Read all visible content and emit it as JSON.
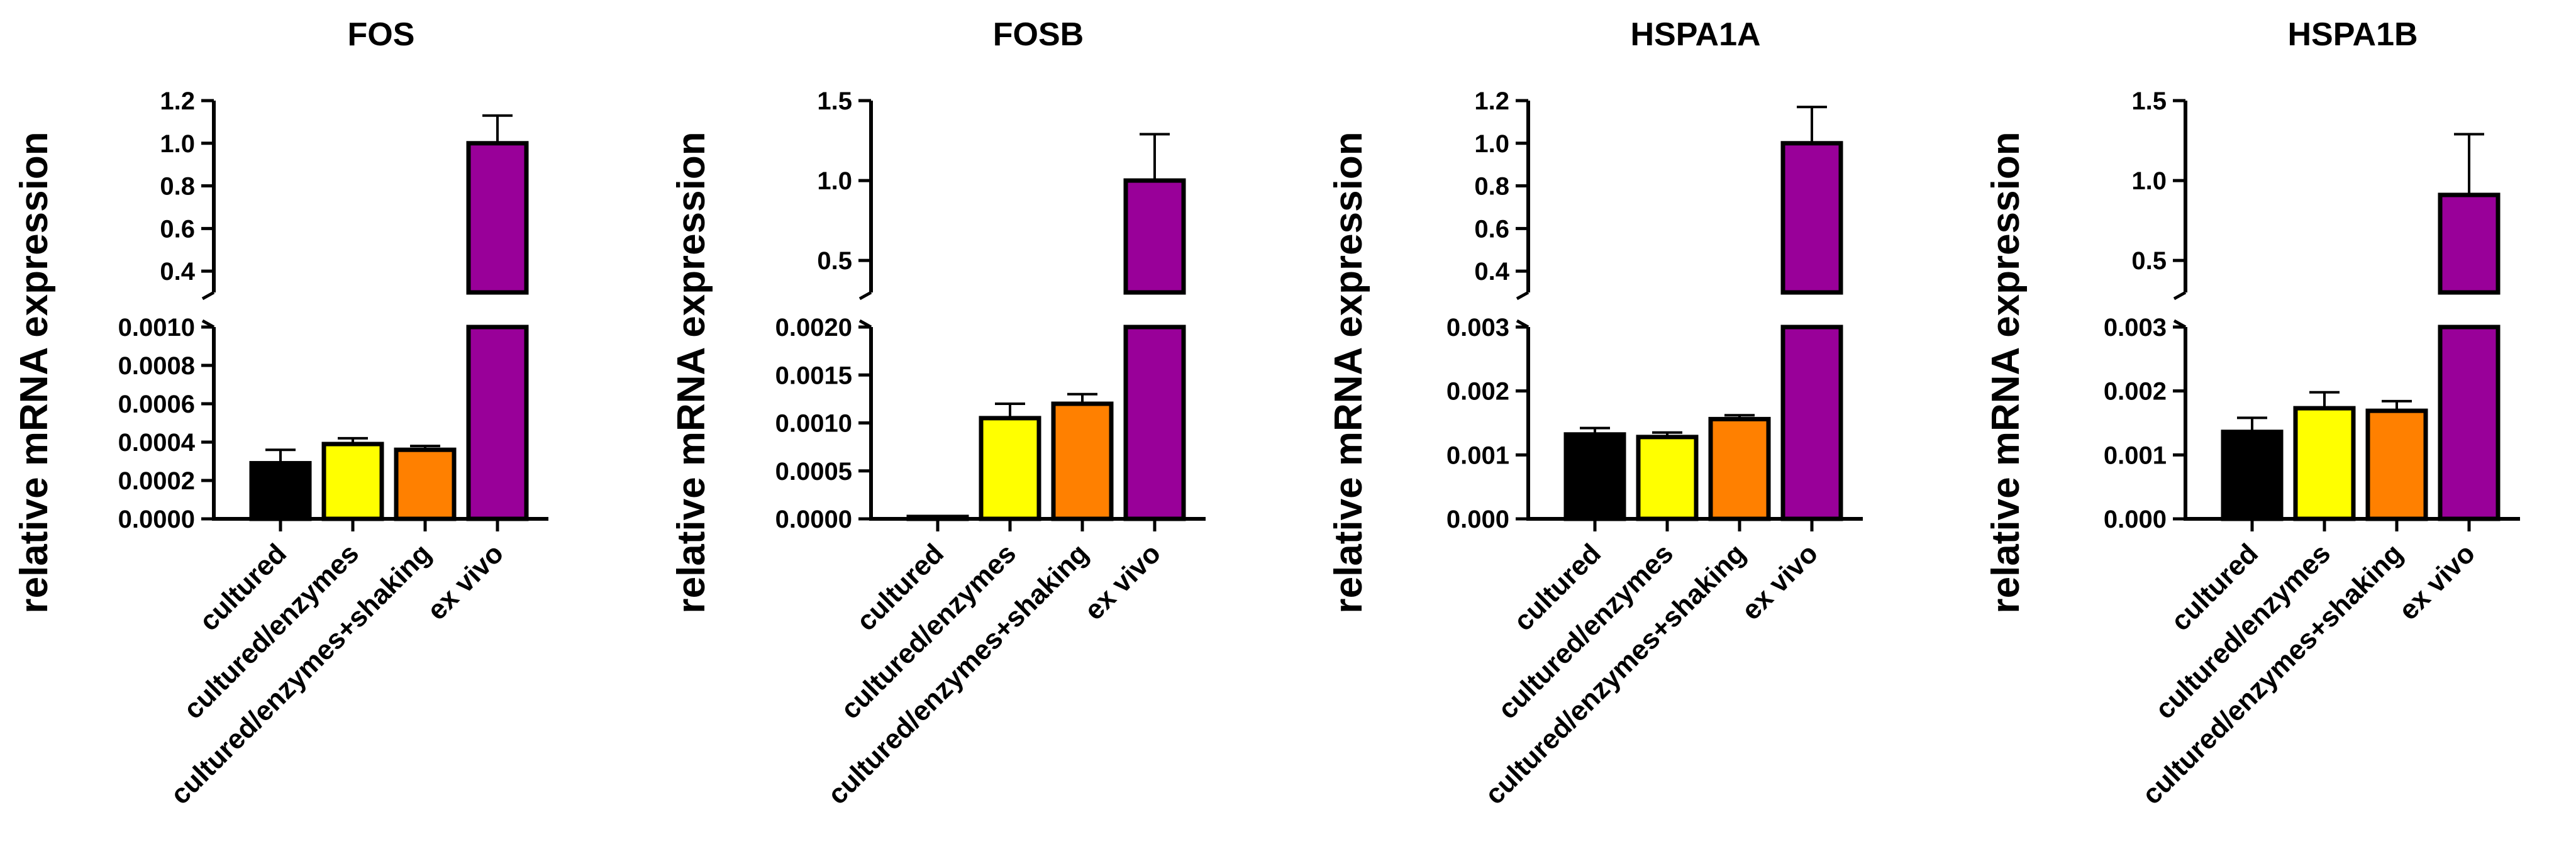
{
  "chart_data": [
    {
      "type": "bar",
      "title": "FOS",
      "ylabel": "relative mRNA expression",
      "categories": [
        "cultured",
        "cultured/enzymes",
        "cultured/enzymes+shaking",
        "ex vivo"
      ],
      "values": [
        0.00029,
        0.00039,
        0.00036,
        1.0
      ],
      "errors": [
        7e-05,
        3e-05,
        2e-05,
        0.13
      ],
      "colors": [
        "#000000",
        "#ffff00",
        "#ff8000",
        "#990099"
      ],
      "broken_axis": true,
      "lower": {
        "ylim": [
          0,
          0.001
        ],
        "ticks": [
          "0.0000",
          "0.0002",
          "0.0004",
          "0.0006",
          "0.0008",
          "0.0010"
        ]
      },
      "upper": {
        "ylim": [
          0.3,
          1.2
        ],
        "ticks": [
          "0.4",
          "0.6",
          "0.8",
          "1.0",
          "1.2"
        ]
      }
    },
    {
      "type": "bar",
      "title": "FOSB",
      "ylabel": "relative mRNA expression",
      "categories": [
        "cultured",
        "cultured/enzymes",
        "cultured/enzymes+shaking",
        "ex vivo"
      ],
      "values": [
        2e-05,
        0.00105,
        0.0012,
        1.0
      ],
      "errors": [
        0.0,
        0.00015,
        0.0001,
        0.29
      ],
      "colors": [
        "#000000",
        "#ffff00",
        "#ff8000",
        "#990099"
      ],
      "broken_axis": true,
      "lower": {
        "ylim": [
          0,
          0.002
        ],
        "ticks": [
          "0.0000",
          "0.0005",
          "0.0010",
          "0.0015",
          "0.0020"
        ]
      },
      "upper": {
        "ylim": [
          0.3,
          1.5
        ],
        "ticks": [
          "0.5",
          "1.0",
          "1.5"
        ]
      }
    },
    {
      "type": "bar",
      "title": "HSPA1A",
      "ylabel": "relative mRNA expression",
      "categories": [
        "cultured",
        "cultured/enzymes",
        "cultured/enzymes+shaking",
        "ex vivo"
      ],
      "values": [
        0.00132,
        0.00128,
        0.00156,
        1.0
      ],
      "errors": [
        0.0001,
        7e-05,
        6e-05,
        0.17
      ],
      "colors": [
        "#000000",
        "#ffff00",
        "#ff8000",
        "#990099"
      ],
      "broken_axis": true,
      "lower": {
        "ylim": [
          0,
          0.003
        ],
        "ticks": [
          "0.000",
          "0.001",
          "0.002",
          "0.003"
        ]
      },
      "upper": {
        "ylim": [
          0.3,
          1.2
        ],
        "ticks": [
          "0.4",
          "0.6",
          "0.8",
          "1.0",
          "1.2"
        ]
      }
    },
    {
      "type": "bar",
      "title": "HSPA1B",
      "ylabel": "relative mRNA expression",
      "categories": [
        "cultured",
        "cultured/enzymes",
        "cultured/enzymes+shaking",
        "ex vivo"
      ],
      "values": [
        0.00136,
        0.00173,
        0.00169,
        0.91
      ],
      "errors": [
        0.00022,
        0.00025,
        0.00015,
        0.38
      ],
      "colors": [
        "#000000",
        "#ffff00",
        "#ff8000",
        "#990099"
      ],
      "broken_axis": true,
      "lower": {
        "ylim": [
          0,
          0.003
        ],
        "ticks": [
          "0.000",
          "0.001",
          "0.002",
          "0.003"
        ]
      },
      "upper": {
        "ylim": [
          0.3,
          1.5
        ],
        "ticks": [
          "0.5",
          "1.0",
          "1.5"
        ]
      }
    }
  ]
}
